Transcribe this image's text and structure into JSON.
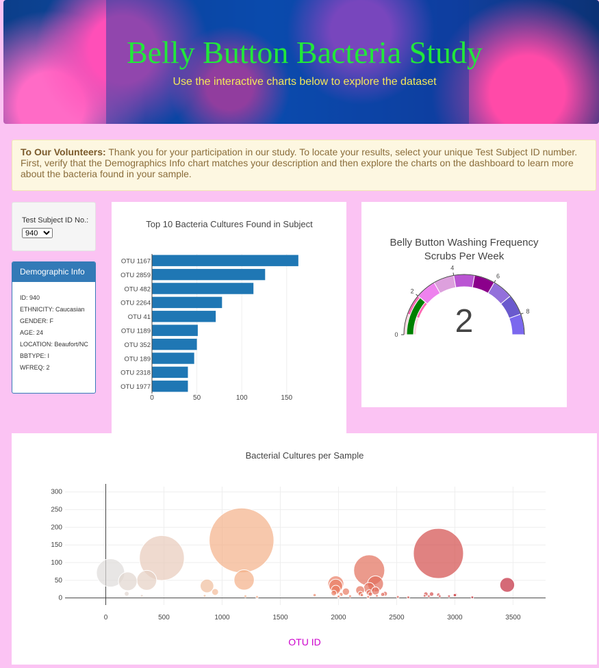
{
  "header": {
    "title": "Belly Button Bacteria Study",
    "subtitle": "Use the interactive charts below to explore the dataset"
  },
  "notice": {
    "bold": "To Our Volunteers:",
    "text": "Thank you for your participation in our study. To locate your results, select your unique Test Subject ID number. First, verify that the Demographics Info chart matches your description and then explore the charts on the dashboard to learn more about the bacteria found in your sample."
  },
  "selector": {
    "label": "Test Subject ID No.:",
    "selected": "940"
  },
  "demographics": {
    "title": "Demographic Info",
    "lines": [
      "ID: 940",
      "ETHNICITY: Caucasian",
      "GENDER: F",
      "AGE: 24",
      "LOCATION: Beaufort/NC",
      "BBTYPE: I",
      "WFREQ: 2"
    ]
  },
  "colors": {
    "bar": "#1f77b4",
    "gaugeNeedle": "#008000",
    "background": "#fbc3f3",
    "bubbleAxisTitle": "#cc00cc"
  },
  "chart_data": [
    {
      "type": "bar",
      "orientation": "horizontal",
      "title": "Top 10 Bacteria Cultures Found in Subject",
      "categories": [
        "OTU 1167",
        "OTU 2859",
        "OTU 482",
        "OTU 2264",
        "OTU 41",
        "OTU 1189",
        "OTU 352",
        "OTU 189",
        "OTU 2318",
        "OTU 1977"
      ],
      "values": [
        163,
        126,
        113,
        78,
        71,
        51,
        50,
        47,
        40,
        40
      ],
      "xticks": [
        0,
        50,
        100,
        150
      ],
      "xlim": [
        0,
        170
      ]
    },
    {
      "type": "gauge",
      "title": "Belly Button Washing Frequency",
      "subtitle": "Scrubs Per Week",
      "value": 2,
      "range": [
        0,
        9
      ],
      "ticks": [
        0,
        2,
        4,
        6,
        8
      ],
      "step_colors": [
        "#ffd6e0",
        "#ff69b4",
        "#ee82ee",
        "#dda0dd",
        "#ba55d3",
        "#8b008b",
        "#9370db",
        "#6a5acd",
        "#7b68ee"
      ]
    },
    {
      "type": "scatter",
      "title": "Bacterial Cultures per Sample",
      "xlabel": "OTU ID",
      "xticks": [
        0,
        500,
        1000,
        1500,
        2000,
        2500,
        3000,
        3500
      ],
      "yticks": [
        0,
        50,
        100,
        150,
        200,
        250,
        300
      ],
      "xlim": [
        -350,
        3780
      ],
      "ylim": [
        -20,
        315
      ],
      "points": [
        [
          1167,
          163
        ],
        [
          2859,
          126
        ],
        [
          482,
          113
        ],
        [
          2264,
          78
        ],
        [
          41,
          71
        ],
        [
          1189,
          51
        ],
        [
          352,
          50
        ],
        [
          189,
          47
        ],
        [
          2318,
          40
        ],
        [
          1977,
          40
        ],
        [
          3450,
          37
        ],
        [
          1977,
          34
        ],
        [
          870,
          34
        ],
        [
          2264,
          28
        ],
        [
          1977,
          23
        ],
        [
          2186,
          22
        ],
        [
          2318,
          20
        ],
        [
          2264,
          15
        ],
        [
          940,
          17
        ],
        [
          2064,
          18
        ],
        [
          1960,
          14
        ],
        [
          2189,
          12
        ],
        [
          2274,
          11
        ],
        [
          2380,
          10
        ],
        [
          2400,
          12
        ],
        [
          2751,
          11
        ],
        [
          2859,
          9
        ],
        [
          3005,
          9
        ],
        [
          2800,
          11
        ],
        [
          1795,
          8
        ],
        [
          2022,
          10
        ],
        [
          2005,
          6
        ],
        [
          2201,
          8
        ],
        [
          2330,
          6
        ],
        [
          2776,
          5
        ],
        [
          2870,
          5
        ],
        [
          2740,
          6
        ],
        [
          3000,
          8
        ],
        [
          2950,
          5
        ],
        [
          2100,
          5
        ],
        [
          180,
          12
        ],
        [
          310,
          6
        ],
        [
          850,
          6
        ],
        [
          1200,
          5
        ],
        [
          1300,
          3
        ],
        [
          2000,
          4
        ],
        [
          2255,
          3
        ],
        [
          2510,
          3
        ],
        [
          2600,
          2
        ],
        [
          3150,
          2
        ]
      ]
    }
  ]
}
